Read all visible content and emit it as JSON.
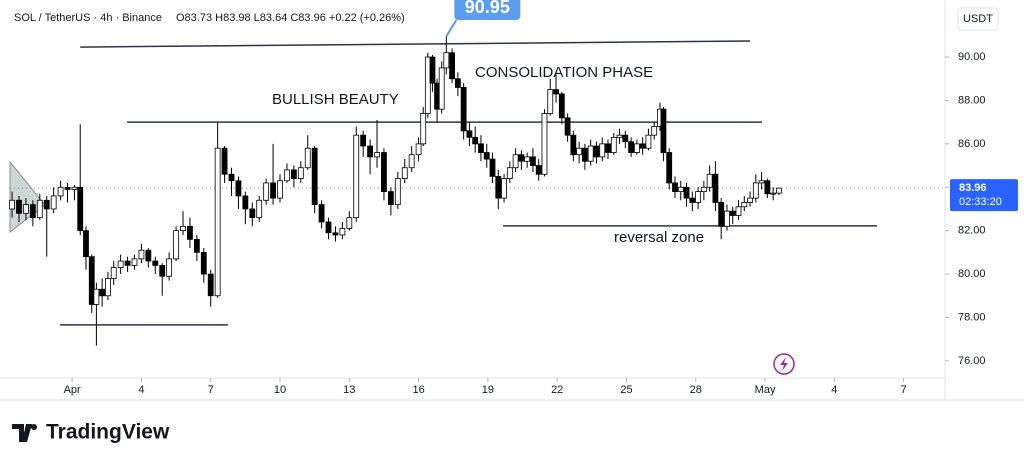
{
  "chart_data": {
    "type": "candlestick",
    "title": "SOL / TetherUS · 4h · Binance",
    "subtitle": "O83.73 H83.98 L83.64 C83.96 +0.22 (+0.26%)",
    "currency": "USDT",
    "up_color": "#ffffff",
    "down_color": "#000000",
    "line_color": "#2a3550",
    "grid": false,
    "xlim": [
      -2.69,
      37.79
    ],
    "ylim": [
      75.21,
      92.63
    ],
    "xticks": [
      {
        "value": 0,
        "label": "Apr"
      },
      {
        "value": 3,
        "label": "4"
      },
      {
        "value": 6,
        "label": "7"
      },
      {
        "value": 9,
        "label": "10"
      },
      {
        "value": 12,
        "label": "13"
      },
      {
        "value": 15,
        "label": "16"
      },
      {
        "value": 18,
        "label": "19"
      },
      {
        "value": 21,
        "label": "22"
      },
      {
        "value": 24,
        "label": "25"
      },
      {
        "value": 27,
        "label": "28"
      },
      {
        "value": 30,
        "label": "May"
      },
      {
        "value": 33,
        "label": "4"
      },
      {
        "value": 36,
        "label": "7"
      }
    ],
    "yticks": [
      {
        "value": 76,
        "label": "76.00"
      },
      {
        "value": 78,
        "label": "78.00"
      },
      {
        "value": 80,
        "label": "80.00"
      },
      {
        "value": 82,
        "label": "82.00"
      },
      {
        "value": 84,
        "label": "84.00"
      },
      {
        "value": 86,
        "label": "86.00"
      },
      {
        "value": 88,
        "label": "88.00"
      },
      {
        "value": 90,
        "label": "90.00"
      }
    ],
    "x": [
      -2.6,
      -2.3,
      -2.0,
      -1.7,
      -1.4,
      -1.1,
      -0.8,
      -0.5,
      -0.2,
      0.1,
      0.35,
      0.6,
      0.85,
      1.05,
      1.3,
      1.55,
      1.8,
      2.1,
      2.4,
      2.7,
      3.0,
      3.3,
      3.6,
      3.9,
      4.2,
      4.5,
      4.8,
      5.1,
      5.4,
      5.7,
      6.0,
      6.3,
      6.6,
      6.9,
      7.2,
      7.5,
      7.8,
      8.1,
      8.4,
      8.7,
      9.0,
      9.3,
      9.6,
      9.9,
      10.2,
      10.5,
      10.8,
      11.1,
      11.4,
      11.7,
      12.0,
      12.3,
      12.6,
      12.9,
      13.2,
      13.5,
      13.8,
      14.1,
      14.4,
      14.7,
      15.0,
      15.2,
      15.4,
      15.6,
      15.8,
      16.0,
      16.2,
      16.45,
      16.7,
      16.95,
      17.2,
      17.45,
      17.7,
      17.95,
      18.2,
      18.45,
      18.7,
      18.95,
      19.2,
      19.45,
      19.7,
      19.95,
      20.2,
      20.45,
      20.7,
      20.95,
      21.2,
      21.45,
      21.7,
      21.95,
      22.2,
      22.45,
      22.7,
      22.95,
      23.2,
      23.45,
      23.7,
      23.95,
      24.2,
      24.45,
      24.7,
      24.95,
      25.2,
      25.45,
      25.6,
      25.85,
      26.1,
      26.35,
      26.6,
      26.85,
      27.1,
      27.35,
      27.6,
      27.85,
      28.1,
      28.35,
      28.6,
      28.85,
      29.1,
      29.35,
      29.6,
      29.85,
      30.1,
      30.35,
      30.6
    ],
    "open": [
      83.0,
      83.4,
      82.8,
      83.2,
      82.6,
      83.4,
      83.0,
      83.6,
      84.0,
      83.9,
      84.0,
      82.0,
      80.8,
      78.6,
      79.3,
      79.0,
      79.8,
      80.3,
      80.6,
      80.4,
      80.7,
      81.1,
      80.6,
      80.4,
      79.9,
      80.7,
      82.0,
      82.2,
      81.6,
      81.0,
      80.0,
      79.0,
      85.8,
      84.6,
      84.3,
      83.6,
      83.0,
      82.6,
      83.4,
      84.2,
      83.5,
      84.3,
      84.8,
      84.4,
      84.9,
      85.8,
      83.2,
      82.4,
      81.9,
      81.8,
      82.1,
      82.6,
      86.4,
      85.9,
      85.4,
      85.6,
      83.8,
      83.2,
      84.4,
      84.9,
      85.5,
      86.0,
      87.4,
      90.0,
      88.8,
      87.6,
      89.5,
      90.2,
      89.0,
      88.6,
      86.6,
      86.3,
      86.0,
      85.6,
      85.3,
      84.5,
      83.5,
      84.4,
      84.9,
      85.5,
      85.2,
      85.4,
      85.0,
      84.6,
      87.4,
      88.5,
      88.3,
      87.2,
      86.4,
      85.5,
      85.8,
      85.2,
      85.9,
      85.4,
      86.0,
      85.6,
      86.3,
      86.4,
      86.1,
      85.6,
      86.0,
      85.8,
      86.4,
      86.8,
      87.6,
      85.6,
      84.2,
      83.8,
      84.0,
      83.5,
      83.3,
      83.8,
      84.0,
      84.6,
      83.3,
      82.2,
      82.9,
      82.7,
      83.1,
      83.3,
      83.5,
      84.2,
      84.3,
      83.7,
      83.73
    ],
    "high": [
      83.8,
      83.6,
      83.5,
      83.4,
      83.7,
      83.6,
      84.0,
      84.3,
      84.2,
      84.1,
      86.9,
      82.2,
      80.9,
      79.6,
      79.8,
      80.1,
      80.6,
      80.9,
      80.8,
      80.9,
      81.4,
      81.2,
      80.8,
      80.5,
      81.0,
      82.2,
      82.9,
      82.6,
      81.8,
      81.2,
      80.2,
      87.0,
      85.9,
      84.9,
      84.5,
      83.8,
      83.3,
      83.6,
      84.4,
      86.0,
      84.6,
      85.1,
      85.0,
      85.2,
      86.4,
      85.9,
      83.4,
      82.6,
      82.2,
      82.4,
      82.9,
      86.8,
      86.6,
      86.2,
      87.1,
      85.8,
      84.0,
      84.7,
      85.3,
      85.9,
      86.3,
      87.7,
      90.2,
      90.1,
      89.0,
      89.8,
      90.95,
      90.4,
      89.3,
      88.8,
      87.0,
      86.8,
      86.4,
      86.0,
      85.6,
      84.8,
      84.6,
      85.2,
      85.8,
      85.7,
      85.6,
      85.8,
      85.3,
      87.6,
      89.0,
      89.2,
      88.4,
      87.4,
      86.6,
      86.1,
      86.0,
      86.2,
      86.1,
      86.3,
      86.2,
      86.5,
      86.7,
      86.6,
      86.3,
      86.2,
      86.3,
      86.7,
      87.0,
      87.9,
      87.7,
      85.8,
      84.5,
      84.3,
      84.2,
      83.8,
      84.0,
      84.3,
      85.0,
      85.2,
      83.5,
      83.2,
      83.1,
      83.4,
      83.6,
      83.8,
      84.6,
      84.7,
      84.4,
      84.0,
      83.98
    ],
    "low": [
      82.6,
      82.4,
      82.5,
      82.2,
      82.5,
      80.8,
      82.8,
      83.4,
      83.3,
      83.4,
      81.8,
      80.2,
      78.2,
      76.7,
      78.5,
      78.8,
      79.5,
      80.0,
      80.1,
      80.2,
      80.5,
      80.3,
      80.0,
      79.0,
      79.7,
      80.6,
      81.8,
      81.2,
      80.6,
      79.6,
      78.5,
      78.9,
      84.2,
      83.6,
      83.0,
      82.3,
      82.2,
      82.4,
      83.2,
      83.2,
      83.3,
      84.2,
      84.0,
      84.2,
      84.8,
      82.8,
      82.1,
      81.6,
      81.5,
      81.6,
      82.0,
      82.4,
      85.4,
      84.6,
      84.9,
      83.4,
      82.7,
      83.0,
      84.2,
      84.7,
      85.2,
      85.9,
      87.2,
      88.4,
      87.0,
      87.4,
      89.2,
      88.8,
      88.2,
      86.2,
      85.9,
      85.6,
      85.2,
      84.9,
      84.2,
      83.0,
      83.3,
      84.2,
      84.7,
      84.8,
      84.9,
      84.7,
      84.3,
      84.5,
      87.3,
      87.9,
      86.9,
      86.1,
      85.2,
      85.1,
      84.8,
      85.0,
      85.1,
      85.2,
      85.3,
      85.5,
      86.0,
      85.8,
      85.4,
      85.5,
      85.5,
      85.7,
      86.2,
      86.6,
      85.2,
      83.9,
      83.5,
      83.4,
      83.1,
      82.9,
      83.0,
      83.4,
      83.8,
      82.9,
      81.6,
      82.0,
      82.3,
      82.5,
      82.9,
      83.1,
      83.3,
      83.9,
      83.5,
      83.4,
      83.64
    ],
    "close": [
      83.4,
      82.8,
      83.2,
      82.6,
      83.4,
      83.0,
      83.6,
      84.0,
      83.9,
      84.0,
      82.0,
      80.8,
      78.6,
      79.3,
      79.0,
      79.8,
      80.3,
      80.6,
      80.4,
      80.7,
      81.1,
      80.6,
      80.4,
      79.9,
      80.7,
      82.0,
      82.2,
      81.6,
      81.0,
      80.0,
      79.0,
      85.8,
      84.6,
      84.3,
      83.6,
      83.0,
      82.6,
      83.4,
      84.2,
      83.5,
      84.3,
      84.8,
      84.4,
      84.9,
      85.8,
      83.2,
      82.4,
      81.9,
      81.8,
      82.1,
      82.6,
      86.4,
      85.9,
      85.4,
      85.6,
      83.8,
      83.2,
      84.4,
      84.9,
      85.5,
      86.0,
      87.4,
      90.0,
      88.8,
      87.6,
      89.5,
      90.2,
      89.0,
      88.6,
      86.6,
      86.3,
      86.0,
      85.6,
      85.3,
      84.5,
      83.5,
      84.4,
      84.9,
      85.5,
      85.2,
      85.4,
      85.0,
      84.6,
      87.4,
      88.5,
      88.3,
      87.2,
      86.4,
      85.5,
      85.8,
      85.2,
      85.9,
      85.4,
      86.0,
      85.6,
      86.3,
      86.4,
      86.1,
      85.6,
      86.0,
      85.8,
      86.4,
      86.8,
      87.6,
      85.6,
      84.2,
      83.8,
      84.0,
      83.5,
      83.3,
      83.8,
      84.0,
      84.6,
      83.3,
      82.2,
      82.9,
      82.7,
      83.1,
      83.3,
      83.5,
      84.2,
      84.3,
      83.7,
      83.73,
      83.96
    ],
    "lines": [
      {
        "x": [
          0.35,
          29.35
        ],
        "y": [
          90.46,
          90.74
        ]
      },
      {
        "x": [
          2.38,
          29.87
        ],
        "y": [
          87.0,
          87.0
        ]
      },
      {
        "x": [
          18.66,
          34.85
        ],
        "y": [
          82.22,
          82.22
        ]
      },
      {
        "x": [
          -0.52,
          6.75
        ],
        "y": [
          77.66,
          77.66
        ]
      }
    ],
    "annotations": [
      "BULLISH BEAUTY",
      "CONSOLIDATION PHASE",
      "reversal zone"
    ],
    "last_price": {
      "value": 83.96,
      "label": "83.96"
    },
    "countdown": "02:33:20",
    "high_marker": {
      "value": 90.95,
      "label": "90.95"
    }
  },
  "footer": {
    "brand": "TradingView"
  }
}
